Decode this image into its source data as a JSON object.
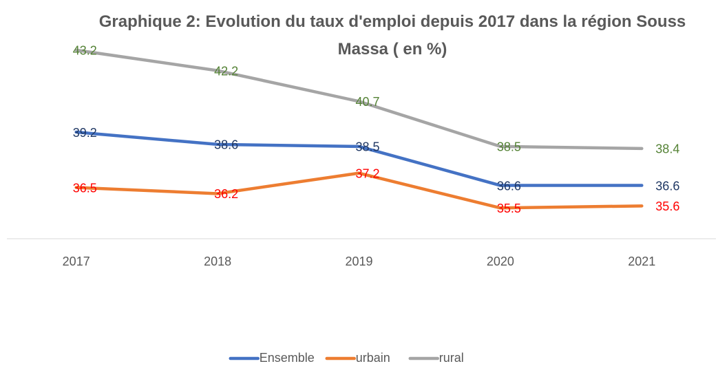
{
  "chart_data": {
    "type": "line",
    "title": "Graphique 2: Evolution du taux d'emploi depuis 2017 dans la région Souss Massa ( en %)",
    "categories": [
      "2017",
      "2018",
      "2019",
      "2020",
      "2021"
    ],
    "series": [
      {
        "name": "Ensemble",
        "color": "#4472c4",
        "label_color": "#203864",
        "values": [
          39.2,
          38.6,
          38.5,
          36.6,
          36.6
        ]
      },
      {
        "name": "urbain",
        "color": "#ed7d31",
        "label_color": "#ff0000",
        "values": [
          36.5,
          36.2,
          37.2,
          35.5,
          35.6
        ]
      },
      {
        "name": "rural",
        "color": "#a5a5a5",
        "label_color": "#548235",
        "values": [
          43.2,
          42.2,
          40.7,
          38.5,
          38.4
        ]
      }
    ],
    "ylim": [
      34,
      44
    ],
    "grid": false,
    "legend": "bottom"
  }
}
